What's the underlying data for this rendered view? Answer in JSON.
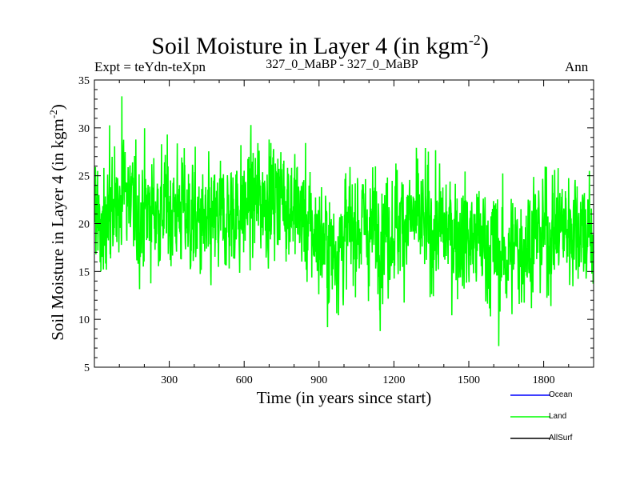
{
  "chart_data": {
    "type": "line",
    "title": "Soil Moisture in Layer 4 (in kgm",
    "title_sup": "-2",
    "title_close": ")",
    "experiment_label": "Expt = teYdn-teXpn",
    "subtitle": "327_0_MaBP - 327_0_MaBP",
    "season": "Ann",
    "xlabel": "Time (in years since start)",
    "ylabel": "Soil Moisture in Layer 4 (in kgm",
    "ylabel_sup": "-2",
    "ylabel_close": ")",
    "xlim": [
      0,
      2000
    ],
    "ylim": [
      5,
      35
    ],
    "x_ticks": [
      300,
      600,
      900,
      1200,
      1500,
      1800
    ],
    "y_ticks": [
      5,
      10,
      15,
      20,
      25,
      30,
      35
    ],
    "series": [
      {
        "name": "Ocean",
        "color": "#0000ff",
        "values": []
      },
      {
        "name": "Land",
        "color": "#00ff00",
        "start_year": 1,
        "end_year": 2000,
        "trend": [
          [
            0,
            20
          ],
          [
            60,
            20
          ],
          [
            120,
            24.5
          ],
          [
            150,
            21
          ],
          [
            250,
            21.5
          ],
          [
            350,
            21.5
          ],
          [
            450,
            19
          ],
          [
            520,
            20.5
          ],
          [
            650,
            22.5
          ],
          [
            760,
            23
          ],
          [
            850,
            20
          ],
          [
            950,
            17
          ],
          [
            1050,
            20
          ],
          [
            1150,
            19
          ],
          [
            1250,
            20.5
          ],
          [
            1350,
            19.5
          ],
          [
            1450,
            19
          ],
          [
            1550,
            18
          ],
          [
            1650,
            16.5
          ],
          [
            1750,
            18.5
          ],
          [
            1850,
            19.5
          ],
          [
            1950,
            20
          ],
          [
            2000,
            18
          ]
        ],
        "noise_sd": 3.2,
        "min": 7.2,
        "max": 33.3,
        "min_year": 1620,
        "max_year": 110
      },
      {
        "name": "AllSurf",
        "color": "#000000",
        "values": []
      }
    ],
    "legend_position": "bottom-right",
    "grid": false
  }
}
